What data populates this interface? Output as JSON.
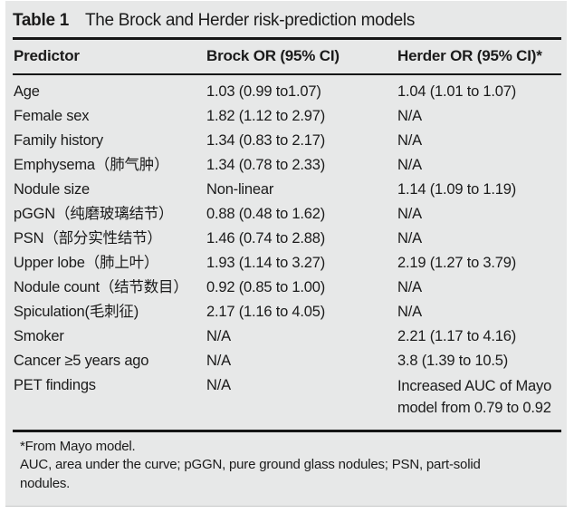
{
  "table": {
    "label": "Table 1",
    "caption": "The Brock and Herder risk-prediction models",
    "columns": [
      "Predictor",
      "Brock OR (95% CI)",
      "Herder OR (95% CI)*"
    ],
    "rows": [
      {
        "predictor": "Age",
        "brock": "1.03 (0.99 to1.07)",
        "herder": "1.04 (1.01 to 1.07)"
      },
      {
        "predictor": "Female sex",
        "brock": "1.82 (1.12 to 2.97)",
        "herder": "N/A"
      },
      {
        "predictor": "Family history",
        "brock": "1.34 (0.83 to 2.17)",
        "herder": "N/A"
      },
      {
        "predictor": "Emphysema（肺气肿）",
        "brock": "1.34 (0.78 to 2.33)",
        "herder": "N/A"
      },
      {
        "predictor": "Nodule size",
        "brock": "Non-linear",
        "herder": "1.14 (1.09 to 1.19)"
      },
      {
        "predictor": "pGGN（纯磨玻璃结节）",
        "brock": "0.88 (0.48 to 1.62)",
        "herder": "N/A"
      },
      {
        "predictor": "PSN（部分实性结节）",
        "brock": "1.46 (0.74 to 2.88)",
        "herder": "N/A"
      },
      {
        "predictor": "Upper lobe（肺上叶）",
        "brock": "1.93 (1.14 to 3.27)",
        "herder": "2.19 (1.27 to 3.79)"
      },
      {
        "predictor": "Nodule count（结节数目）",
        "brock": "0.92 (0.85 to 1.00)",
        "herder": "N/A"
      },
      {
        "predictor": "Spiculation(毛刺征)",
        "brock": "2.17 (1.16 to 4.05)",
        "herder": "N/A"
      },
      {
        "predictor": "Smoker",
        "brock": "N/A",
        "herder": "2.21 (1.17 to 4.16)"
      },
      {
        "predictor": "Cancer ≥5 years ago",
        "brock": "N/A",
        "herder": "3.8 (1.39 to 10.5)"
      },
      {
        "predictor": "PET findings",
        "brock": "N/A",
        "herder": "Increased AUC of Mayo model from 0.79 to 0.92"
      }
    ],
    "footnotes": [
      "*From Mayo model.",
      "AUC, area under the curve; pGGN, pure ground glass nodules; PSN, part-solid nodules."
    ]
  },
  "colors": {
    "panel_background": "#e7e8e8",
    "rule": "#161616",
    "text": "#1b1b1b"
  }
}
